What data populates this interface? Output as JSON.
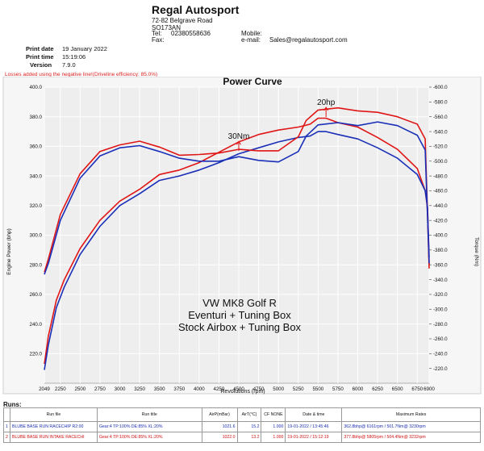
{
  "header": {
    "company": "Regal Autosport",
    "address1": "72-82 Belgrave Road",
    "address2": "SO173AN",
    "tel_label": "Tel:",
    "tel": "02380558636",
    "fax_label": "Fax:",
    "mobile_label": "Mobile:",
    "email_label": "e-mail:",
    "email": "Sales@regalautosport.com"
  },
  "meta": {
    "print_date_label": "Print date",
    "print_date": "19 January 2022",
    "print_time_label": "Print time",
    "print_time": "15:19:06",
    "version_label": "Version",
    "version": "7.9.0"
  },
  "note": "Losses added using the negative line!(Driveline efficiency: 85.0%)",
  "colors": {
    "red": "#e01616",
    "blue": "#1a2fb8",
    "plot_bg": "#eeeeee",
    "grid": "#ffffff"
  },
  "chart_data": {
    "type": "line",
    "title": "Power Curve",
    "xlabel": "Revolutions (rpm)",
    "ylabel": "Engine Power (bhp)",
    "y2label": "Torque (Nm)",
    "xlim": [
      2049,
      6900
    ],
    "ylim": [
      200,
      400
    ],
    "y2lim": [
      200,
      600
    ],
    "x_ticks": [
      "2049",
      "2250",
      "2500",
      "2750",
      "3000",
      "3250",
      "3500",
      "3750",
      "4000",
      "4250",
      "4500",
      "4750",
      "5000",
      "5250",
      "5500",
      "5750",
      "6000",
      "6250",
      "6500",
      "6750",
      "6900"
    ],
    "x_tick_values": [
      2049,
      2250,
      2500,
      2750,
      3000,
      3250,
      3500,
      3750,
      4000,
      4250,
      4500,
      4750,
      5000,
      5250,
      5500,
      5750,
      6000,
      6250,
      6500,
      6750,
      6900
    ],
    "y_ticks": [
      "220.0",
      "240.0",
      "260.0",
      "280.0",
      "300.0",
      "320.0",
      "340.0",
      "360.0",
      "380.0",
      "400.0"
    ],
    "y2_ticks": [
      "220.0",
      "240.0",
      "260.0",
      "280.0",
      "300.0",
      "320.0",
      "340.0",
      "360.0",
      "380.0",
      "400.0",
      "420.0",
      "440.0",
      "460.0",
      "480.0",
      "500.0",
      "520.0",
      "540.0",
      "560.0",
      "580.0",
      "600.0"
    ],
    "series": [
      {
        "color": "#e01616",
        "axis": "left",
        "points": [
          [
            2049,
            213
          ],
          [
            2100,
            232
          ],
          [
            2200,
            256
          ],
          [
            2300,
            270
          ],
          [
            2500,
            291
          ],
          [
            2750,
            310
          ],
          [
            3000,
            323
          ],
          [
            3250,
            331
          ],
          [
            3500,
            341
          ],
          [
            3750,
            344
          ],
          [
            4000,
            349
          ],
          [
            4250,
            356
          ],
          [
            4500,
            363
          ],
          [
            4750,
            368
          ],
          [
            5000,
            371
          ],
          [
            5250,
            373
          ],
          [
            5400,
            375
          ],
          [
            5500,
            379
          ],
          [
            5600,
            379
          ],
          [
            5750,
            376
          ],
          [
            6000,
            373
          ],
          [
            6250,
            366
          ],
          [
            6500,
            358
          ],
          [
            6750,
            345
          ],
          [
            6850,
            330
          ],
          [
            6880,
            318
          ],
          [
            6900,
            280
          ]
        ]
      },
      {
        "color": "#1a2fb8",
        "axis": "left",
        "points": [
          [
            2049,
            209
          ],
          [
            2100,
            226
          ],
          [
            2200,
            251
          ],
          [
            2300,
            265
          ],
          [
            2500,
            287
          ],
          [
            2750,
            306
          ],
          [
            3000,
            320
          ],
          [
            3250,
            328
          ],
          [
            3500,
            337
          ],
          [
            3750,
            340
          ],
          [
            4000,
            344
          ],
          [
            4250,
            349
          ],
          [
            4500,
            355
          ],
          [
            4750,
            359
          ],
          [
            5000,
            363
          ],
          [
            5250,
            366
          ],
          [
            5400,
            367
          ],
          [
            5500,
            370
          ],
          [
            5600,
            370
          ],
          [
            5750,
            368
          ],
          [
            6000,
            365
          ],
          [
            6250,
            359
          ],
          [
            6500,
            352
          ],
          [
            6750,
            341
          ],
          [
            6850,
            330
          ],
          [
            6880,
            319
          ],
          [
            6900,
            285
          ]
        ]
      },
      {
        "color": "#e01616",
        "axis": "right",
        "points": [
          [
            2049,
            350
          ],
          [
            2100,
            368
          ],
          [
            2250,
            428
          ],
          [
            2500,
            483
          ],
          [
            2750,
            513
          ],
          [
            3000,
            522
          ],
          [
            3250,
            527
          ],
          [
            3500,
            519
          ],
          [
            3750,
            508
          ],
          [
            4000,
            509
          ],
          [
            4250,
            511
          ],
          [
            4500,
            516
          ],
          [
            4750,
            514
          ],
          [
            5000,
            514
          ],
          [
            5250,
            533
          ],
          [
            5350,
            555
          ],
          [
            5500,
            569
          ],
          [
            5750,
            572
          ],
          [
            6000,
            568
          ],
          [
            6250,
            566
          ],
          [
            6500,
            560
          ],
          [
            6750,
            550
          ],
          [
            6850,
            530
          ],
          [
            6900,
            355
          ]
        ]
      },
      {
        "color": "#1a2fb8",
        "axis": "right",
        "points": [
          [
            2049,
            347
          ],
          [
            2100,
            362
          ],
          [
            2250,
            420
          ],
          [
            2500,
            477
          ],
          [
            2750,
            507
          ],
          [
            3000,
            518
          ],
          [
            3250,
            521
          ],
          [
            3500,
            513
          ],
          [
            3750,
            504
          ],
          [
            4000,
            500
          ],
          [
            4250,
            500
          ],
          [
            4500,
            506
          ],
          [
            4750,
            501
          ],
          [
            5000,
            499
          ],
          [
            5250,
            513
          ],
          [
            5350,
            534
          ],
          [
            5500,
            549
          ],
          [
            5750,
            552
          ],
          [
            6000,
            548
          ],
          [
            6250,
            553
          ],
          [
            6500,
            548
          ],
          [
            6750,
            535
          ],
          [
            6850,
            515
          ],
          [
            6900,
            362
          ]
        ]
      }
    ],
    "annotations": [
      {
        "text": "20hp",
        "x": 5600,
        "y": 388,
        "axis": "left"
      },
      {
        "text": "30Nm",
        "x": 4500,
        "y": 530,
        "axis": "right"
      }
    ],
    "inset_text": [
      "VW MK8 Golf R",
      "Eventuri + Tuning Box",
      "Stock Airbox + Tuning Box"
    ],
    "grid": true,
    "legend": "none"
  },
  "runs": {
    "title": "Runs:",
    "headers": [
      "",
      "Run file",
      "Run title",
      "AirP(mBar)",
      "AirT(°C)",
      "CF NONE",
      "Date & time",
      "Maximum Rates"
    ],
    "rows": [
      [
        "1",
        "BLUBE BASE RUN RACECHIP R2:00",
        "Gear:4 TP:100% DE:85% XL:20%",
        "1021.6",
        "15.2",
        "1.000",
        "19-01-2022 / 13:45:46",
        "362.8bhp@ 6161rpm / 501.7Nm@ 3230rpm"
      ],
      [
        "2",
        "BLUBE BASE RUN INTAKE RACECHI",
        "Gear:4 TP:100% DE:85% XL:20%",
        "1022.0",
        "13.2",
        "1.000",
        "19-01-2022 / 15:12:19",
        "377.8bhp@ 5805rpm / 504.4Nm@ 3232rpm"
      ]
    ]
  }
}
